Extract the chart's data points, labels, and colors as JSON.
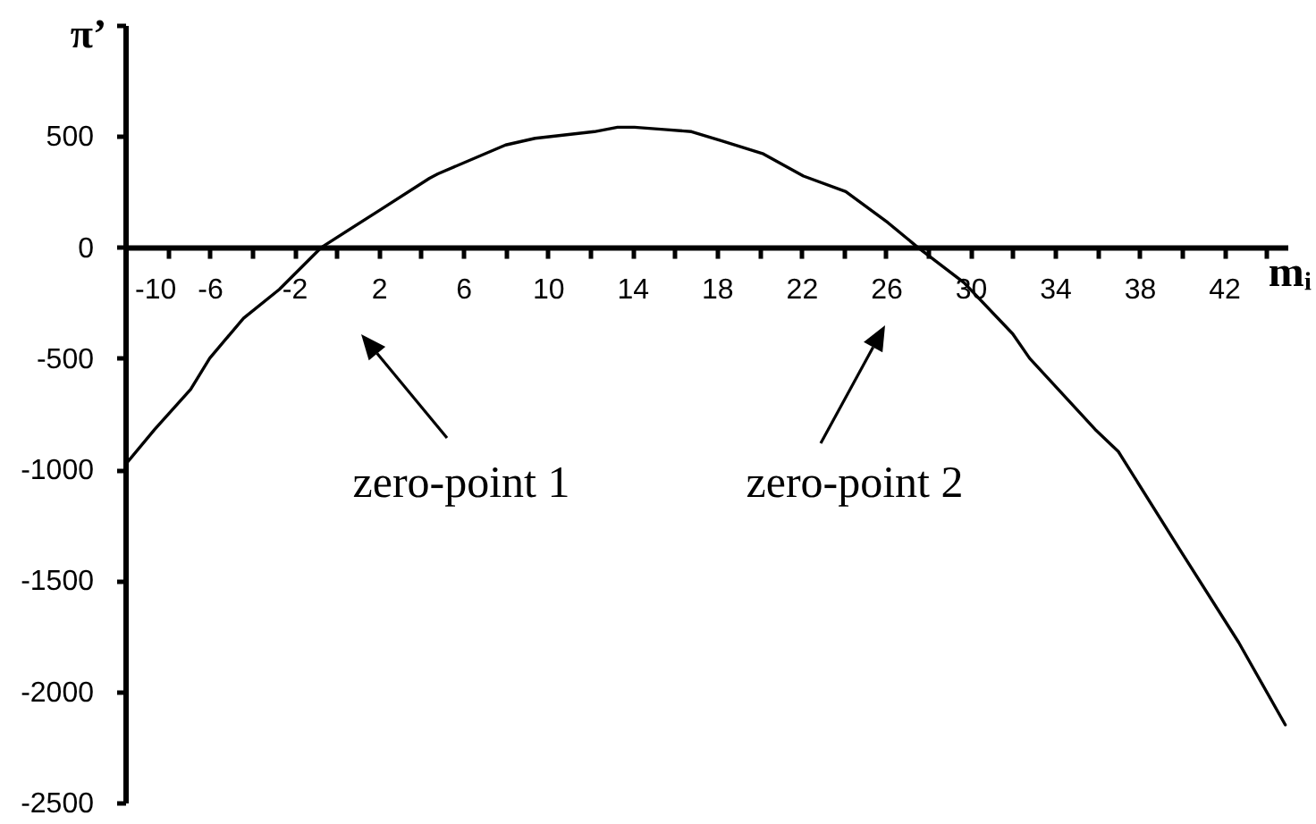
{
  "chart_data": {
    "type": "line",
    "xlabel": "mᵢ",
    "ylabel": "π’",
    "x": [
      -10,
      -8.6,
      -6.9,
      -6.0,
      -4.4,
      -2.7,
      -0.7,
      2.1,
      4.4,
      4.8,
      8.0,
      9.4,
      12.2,
      13.3,
      14.1,
      15.5,
      16.8,
      18.2,
      20.2,
      22.1,
      24.1,
      26.1,
      27.5,
      29.7,
      32.0,
      32.8,
      35.9,
      37.0,
      39.9,
      42.7,
      44.9
    ],
    "values": [
      -980,
      -820,
      -640,
      -500,
      -320,
      -190,
      0,
      170,
      310,
      330,
      460,
      490,
      520,
      540,
      540,
      530,
      520,
      480,
      420,
      320,
      250,
      110,
      0,
      -160,
      -390,
      -500,
      -820,
      -920,
      -1360,
      -1780,
      -2150
    ],
    "color": "#000000",
    "line_style": "solid",
    "xlim": [
      -10,
      45
    ],
    "xticks": [
      -10,
      {
        "value": -8,
        "label": null
      },
      -6,
      {
        "value": -4,
        "label": null
      },
      -2,
      {
        "value": 0,
        "label": null
      },
      2,
      {
        "value": 4,
        "label": null
      },
      6,
      {
        "value": 8,
        "label": null
      },
      10,
      {
        "value": 12,
        "label": null
      },
      14,
      {
        "value": 16,
        "label": null
      },
      18,
      {
        "value": 20,
        "label": null
      },
      22,
      {
        "value": 24,
        "label": null
      },
      26,
      {
        "value": 28,
        "label": null
      },
      30,
      {
        "value": 32,
        "label": null
      },
      34,
      {
        "value": 36,
        "label": null
      },
      38,
      {
        "value": 40,
        "label": null
      },
      42,
      {
        "value": 44,
        "label": null
      }
    ],
    "ylim": [
      -2500,
      1000
    ],
    "yticks": [
      -2500,
      -2000,
      -1500,
      -1000,
      -500,
      0,
      500,
      {
        "value": 1000,
        "label": null
      }
    ],
    "annotations": [
      "zero-point 1",
      "zero-point 2"
    ]
  }
}
